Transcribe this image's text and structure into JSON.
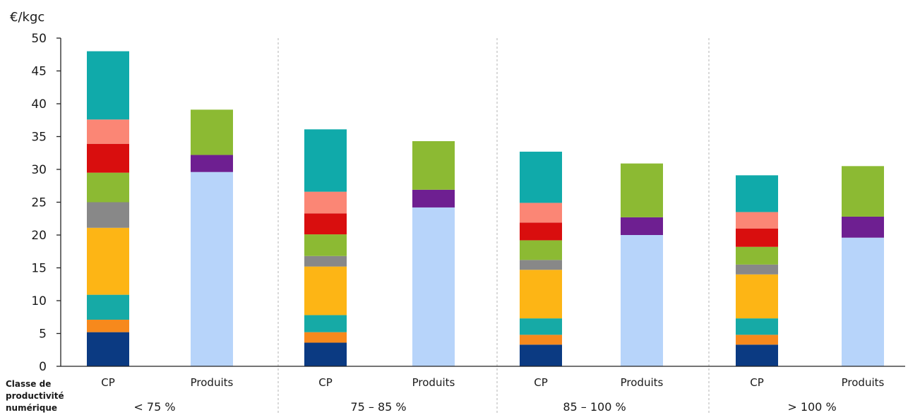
{
  "chart_data": {
    "type": "bar",
    "stacked": true,
    "ylabel": "€/kgc",
    "ylim": [
      0,
      50
    ],
    "yticks": [
      0,
      5,
      10,
      15,
      20,
      25,
      30,
      35,
      40,
      45,
      50
    ],
    "x_row_title": [
      "Classe de",
      "productivité",
      "numérique"
    ],
    "groups": [
      "< 75 %",
      "75 – 85 %",
      "85 – 100 %",
      "> 100 %"
    ],
    "categories": [
      "CP",
      "Produits",
      "CP",
      "Produits",
      "CP",
      "Produits",
      "CP",
      "Produits"
    ],
    "grid": false,
    "group_separators": "dashed",
    "series": [
      {
        "color": "#0b3a82",
        "values": [
          5.2,
          0,
          3.6,
          0,
          3.3,
          0,
          3.3,
          0
        ]
      },
      {
        "color": "#f7891c",
        "values": [
          1.9,
          0,
          1.6,
          0,
          1.5,
          0,
          1.5,
          0
        ]
      },
      {
        "color": "#16aaa6",
        "values": [
          3.8,
          0,
          2.6,
          0,
          2.5,
          0,
          2.5,
          0
        ]
      },
      {
        "color": "#fdb515",
        "values": [
          10.2,
          0,
          7.4,
          0,
          7.4,
          0,
          6.7,
          0
        ]
      },
      {
        "color": "#888888",
        "values": [
          3.9,
          0,
          1.6,
          0,
          1.5,
          0,
          1.5,
          0
        ]
      },
      {
        "color": "#8cba33",
        "values": [
          4.5,
          0,
          3.3,
          0,
          3.0,
          0,
          2.7,
          0
        ]
      },
      {
        "color": "#d90e0e",
        "values": [
          4.4,
          0,
          3.2,
          0,
          2.7,
          0,
          2.8,
          0
        ]
      },
      {
        "color": "#fb8675",
        "values": [
          3.7,
          0,
          3.3,
          0,
          3.0,
          0,
          2.5,
          0
        ]
      },
      {
        "color": "#10aaaa",
        "values": [
          10.4,
          0,
          9.5,
          0,
          7.8,
          0,
          5.6,
          0
        ]
      },
      {
        "color": "#b7d4fa",
        "values": [
          0,
          29.6,
          0,
          24.2,
          0,
          20.0,
          0,
          19.6
        ]
      },
      {
        "color": "#6e1f91",
        "values": [
          0,
          2.6,
          0,
          2.7,
          0,
          2.7,
          0,
          3.2
        ]
      },
      {
        "color": "#8cba33",
        "values": [
          0,
          6.9,
          0,
          7.4,
          0,
          8.2,
          0,
          7.7
        ]
      }
    ]
  }
}
